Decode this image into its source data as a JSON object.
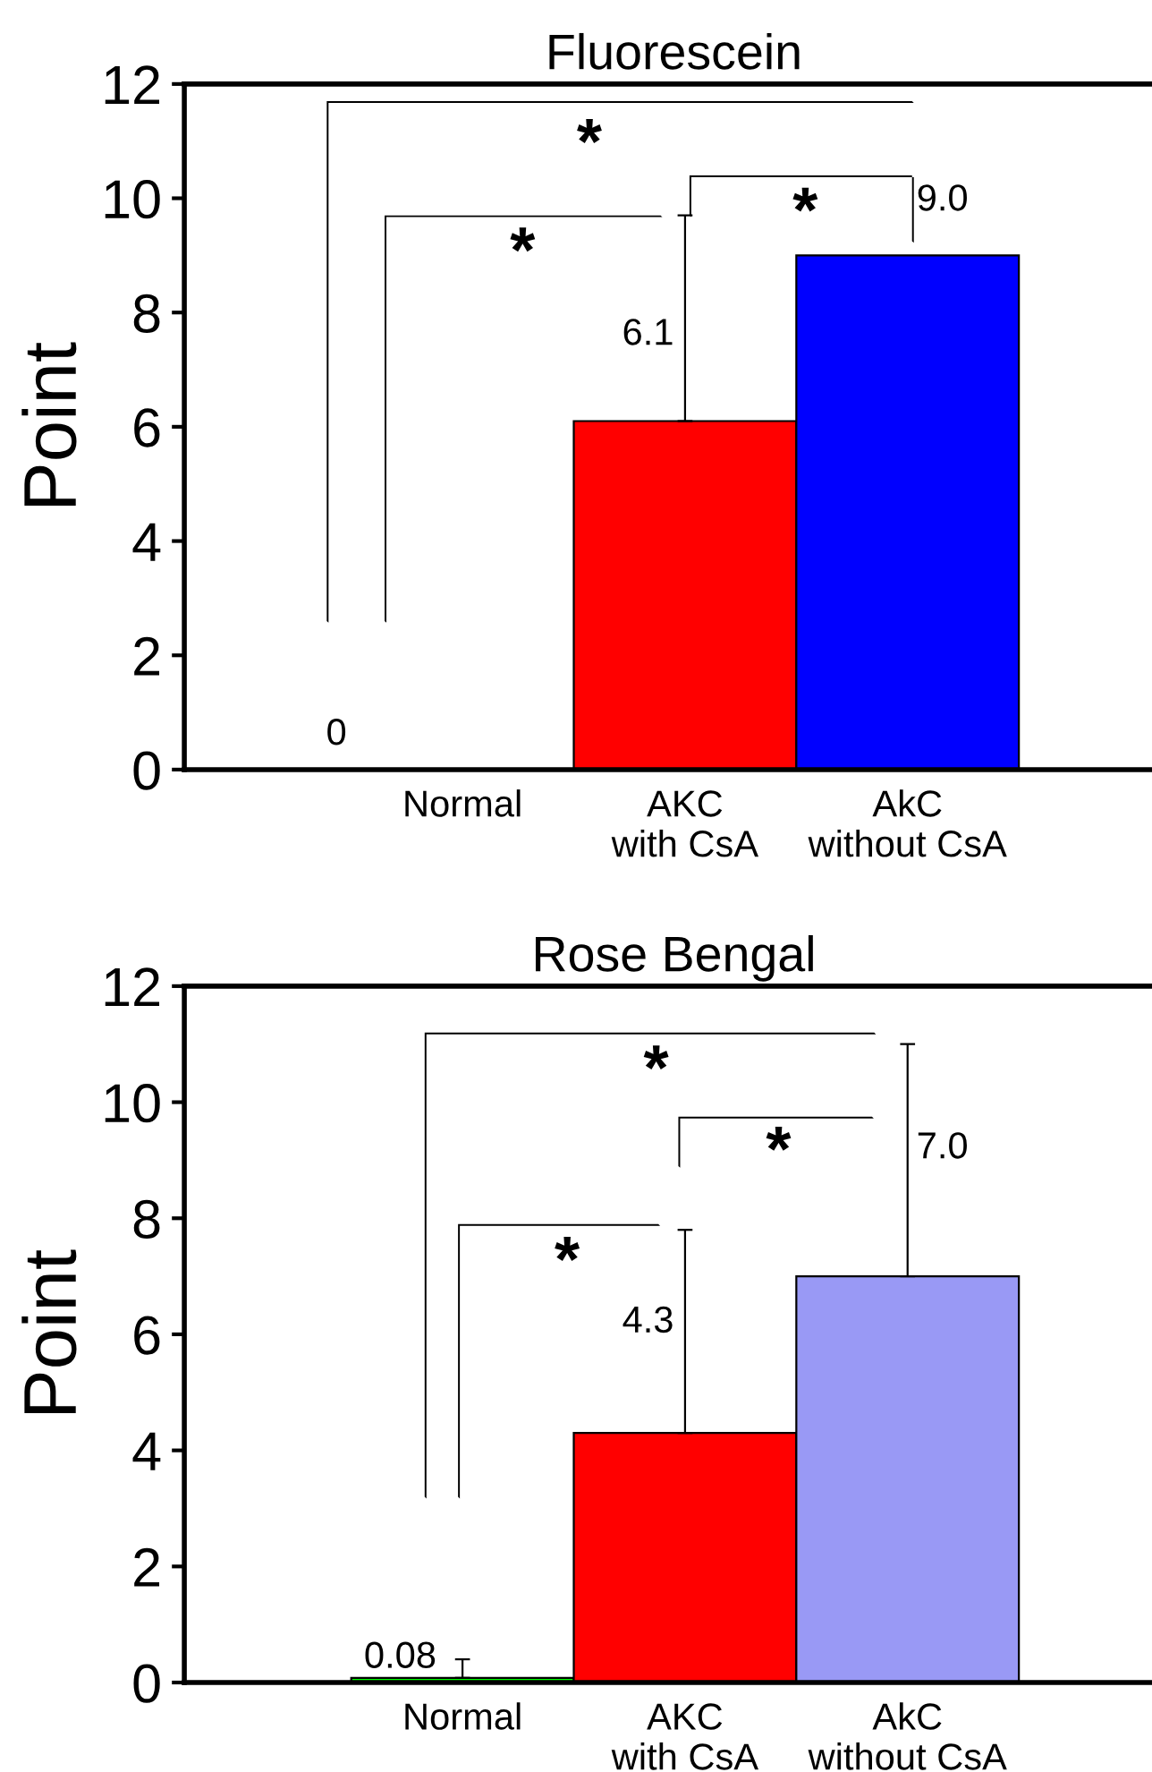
{
  "chart_data": [
    {
      "type": "bar",
      "title": "Fluorescein",
      "ylabel": "Point",
      "categories": [
        "Normal",
        "AKC\nwith CsA",
        "AkC\nwithout CsA"
      ],
      "values": [
        0,
        6.1,
        9.0
      ],
      "colors": [
        "#000000",
        "#ff0000",
        "#0000ff"
      ],
      "errors": [
        null,
        [
          6.1,
          9.7
        ],
        null
      ],
      "value_labels": [
        "0",
        "6.1",
        "9.0"
      ],
      "ylim": [
        0,
        12
      ],
      "yticks": [
        0,
        2,
        4,
        6,
        8,
        10,
        12
      ],
      "annotations": [
        "*",
        "*",
        "*"
      ]
    },
    {
      "type": "bar",
      "title": "Rose Bengal",
      "ylabel": "Point",
      "categories": [
        "Normal",
        "AKC\nwith CsA",
        "AkC\nwithout CsA"
      ],
      "values": [
        0.08,
        4.3,
        7.0
      ],
      "colors": [
        "#00ff00",
        "#ff0000",
        "#9999f5"
      ],
      "errors": [
        [
          0.08,
          0.4
        ],
        [
          4.3,
          7.8
        ],
        [
          7.0,
          11.0
        ]
      ],
      "value_labels": [
        "0.08",
        "4.3",
        "7.0"
      ],
      "ylim": [
        0,
        12
      ],
      "yticks": [
        0,
        2,
        4,
        6,
        8,
        10,
        12
      ],
      "annotations": [
        "*",
        "*",
        "*"
      ]
    }
  ]
}
